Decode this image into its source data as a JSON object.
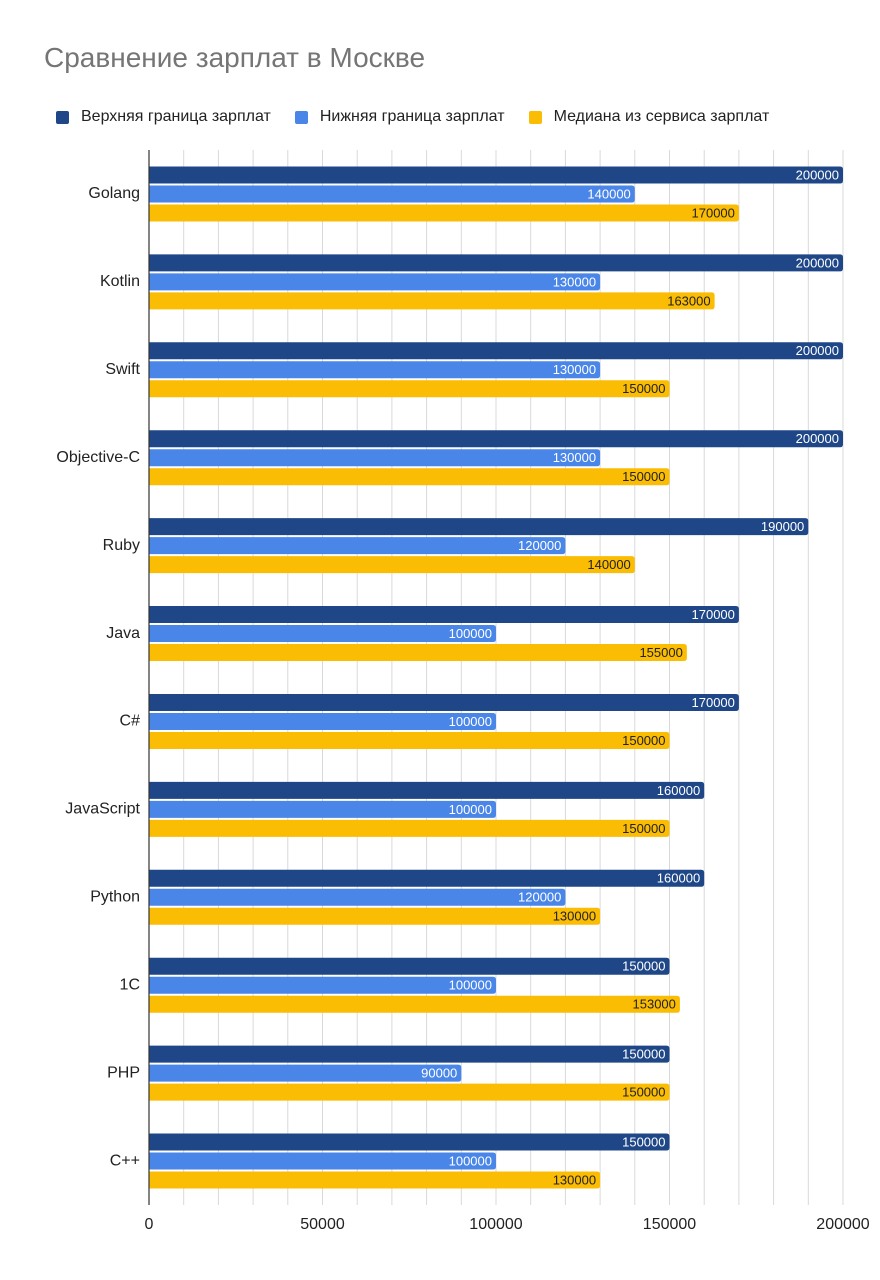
{
  "chart_data": {
    "type": "bar",
    "orientation": "horizontal",
    "title": "Сравнение зарплат в Москве",
    "xlabel": "",
    "ylabel": "",
    "xlim": [
      0,
      200000
    ],
    "xticks": [
      0,
      50000,
      100000,
      150000,
      200000
    ],
    "grid": true,
    "legend_position": "top",
    "categories": [
      "Golang",
      "Kotlin",
      "Swift",
      "Objective-C",
      "Ruby",
      "Java",
      "C#",
      "JavaScript",
      "Python",
      "1C",
      "PHP",
      "C++"
    ],
    "series": [
      {
        "name": "Верхняя граница зарплат",
        "color": "#1f4788",
        "label_color": "#ffffff",
        "values": [
          200000,
          200000,
          200000,
          200000,
          190000,
          170000,
          170000,
          160000,
          160000,
          150000,
          150000,
          150000
        ]
      },
      {
        "name": "Нижняя граница зарплат",
        "color": "#4a86e8",
        "label_color": "#ffffff",
        "values": [
          140000,
          130000,
          130000,
          130000,
          120000,
          100000,
          100000,
          100000,
          120000,
          100000,
          90000,
          100000
        ]
      },
      {
        "name": "Медиана из сервиса зарплат",
        "color": "#fbbc04",
        "label_color": "#222222",
        "values": [
          170000,
          163000,
          150000,
          150000,
          140000,
          155000,
          150000,
          150000,
          130000,
          153000,
          150000,
          130000
        ]
      }
    ]
  }
}
